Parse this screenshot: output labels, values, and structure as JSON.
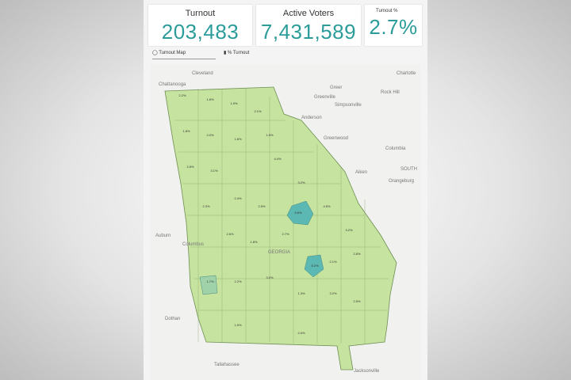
{
  "cards": [
    {
      "label": "Turnout",
      "value": "203,483"
    },
    {
      "label": "Active Voters",
      "value": "7,431,589"
    },
    {
      "label": "Turnout %",
      "value": "2.7%"
    }
  ],
  "tabs": [
    "Turnout Map",
    "% Turnout"
  ],
  "map": {
    "cities": [
      "Cleveland",
      "Chattanooga",
      "Charlotte",
      "Greer",
      "Rock Hill",
      "Greenville",
      "Simpsonville",
      "Anderson",
      "Greenwood",
      "Columbia",
      "Aiken",
      "SOUTH",
      "Orangeburg",
      "Auburn",
      "Columbus",
      "GEORGIA",
      "Dothan",
      "Tallahassee",
      "Jacksonville"
    ],
    "county_labels": [
      "2.2%",
      "1.8%",
      "1.9%",
      "2.1%",
      "1.8%",
      "2.0%",
      "1.6%",
      "1.5%",
      "2.8%",
      "3.1%",
      "4.4%",
      "2.4%",
      "2.5%",
      "3.2%",
      "2.3%",
      "2.6%",
      "1.8%",
      "2.7%",
      "5.6%",
      "4.5%",
      "3.2%",
      "2.8%",
      "2.1%",
      "5.2%",
      "1.7%",
      "2.2%",
      "3.0%",
      "1.3%",
      "3.2%",
      "2.5%",
      "1.9%",
      "2.0%"
    ]
  }
}
